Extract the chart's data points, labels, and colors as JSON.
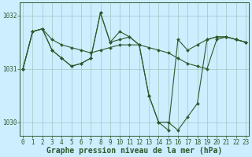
{
  "title": "Graphe pression niveau de la mer (hPa)",
  "bg_color": "#cceeff",
  "grid_color": "#aacccc",
  "line_color": "#2d5a2d",
  "marker_color": "#2d5a2d",
  "tick_color": "#2d5a2d",
  "series": [
    [
      1031.0,
      1031.7,
      1031.75,
      1031.55,
      1031.45,
      1031.4,
      1031.35,
      1031.3,
      1031.35,
      1031.4,
      1031.45,
      1031.45,
      1031.45,
      1031.4,
      1031.35,
      1031.3,
      1031.2,
      1031.1,
      1031.05,
      1031.0,
      1031.55,
      1031.6,
      1031.55,
      1031.5
    ],
    [
      1031.0,
      1031.7,
      1031.75,
      1031.35,
      1031.2,
      1031.05,
      1031.1,
      1031.2,
      1032.05,
      1031.5,
      1031.55,
      1031.6,
      1031.45,
      1030.5,
      1030.0,
      1030.0,
      1029.85,
      1030.1,
      1030.35,
      1031.55,
      1031.6,
      1031.6,
      1031.55,
      1031.5
    ],
    [
      1031.0,
      1031.7,
      1031.75,
      1031.35,
      1031.2,
      1031.05,
      1031.1,
      1031.2,
      1032.05,
      1031.5,
      1031.7,
      1031.6,
      1031.45,
      1030.5,
      1030.0,
      1029.85,
      1031.55,
      1031.35,
      1031.45,
      1031.55,
      1031.6,
      1031.6,
      1031.55,
      1031.5
    ]
  ],
  "ylim": [
    1029.75,
    1032.25
  ],
  "yticks": [
    1030,
    1031,
    1032
  ],
  "xticks": [
    0,
    1,
    2,
    3,
    4,
    5,
    6,
    7,
    8,
    9,
    10,
    11,
    12,
    13,
    14,
    15,
    16,
    17,
    18,
    19,
    20,
    21,
    22,
    23
  ],
  "title_fontsize": 7,
  "tick_fontsize": 5.5,
  "lw": 0.8,
  "ms": 2.0
}
